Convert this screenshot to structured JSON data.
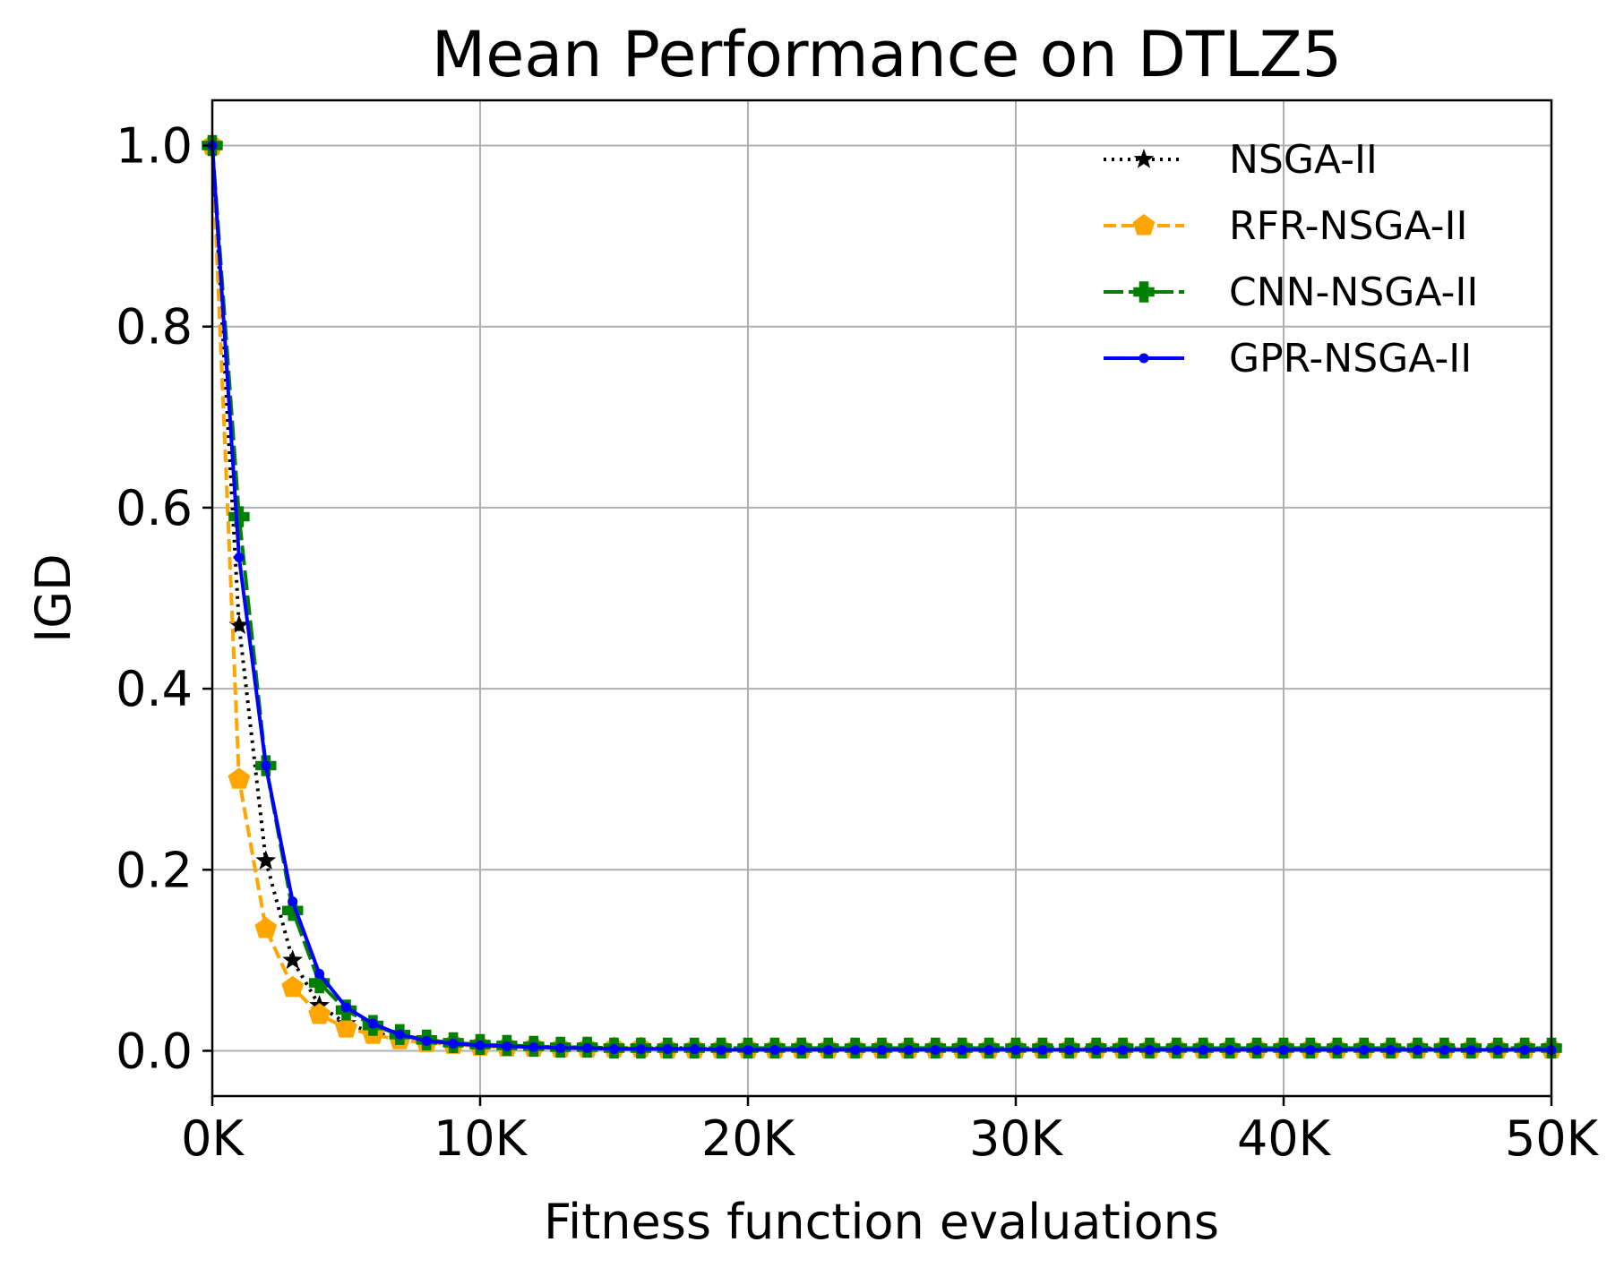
{
  "chart_data": {
    "type": "line",
    "title": "Mean Performance on DTLZ5",
    "xlabel": "Fitness function evaluations",
    "ylabel": "IGD",
    "xlim": [
      0,
      50000
    ],
    "ylim": [
      -0.05,
      1.05
    ],
    "grid": true,
    "legend_position": "top-right",
    "x_ticks": [
      0,
      10000,
      20000,
      30000,
      40000,
      50000
    ],
    "x_tick_labels": [
      "0K",
      "10K",
      "20K",
      "30K",
      "40K",
      "50K"
    ],
    "y_ticks": [
      0.0,
      0.2,
      0.4,
      0.6,
      0.8,
      1.0
    ],
    "y_tick_labels": [
      "0.0",
      "0.2",
      "0.4",
      "0.6",
      "0.8",
      "1.0"
    ],
    "x": [
      0,
      1000,
      2000,
      3000,
      4000,
      5000,
      6000,
      7000,
      8000,
      9000,
      10000,
      11000,
      12000,
      13000,
      14000,
      15000,
      16000,
      17000,
      18000,
      19000,
      20000,
      21000,
      22000,
      23000,
      24000,
      25000,
      26000,
      27000,
      28000,
      29000,
      30000,
      31000,
      32000,
      33000,
      34000,
      35000,
      36000,
      37000,
      38000,
      39000,
      40000,
      41000,
      42000,
      43000,
      44000,
      45000,
      46000,
      47000,
      48000,
      49000,
      50000
    ],
    "series": [
      {
        "name": "NSGA-II",
        "color": "#000000",
        "style": "dotted",
        "marker": "star",
        "values": [
          1.0,
          0.47,
          0.21,
          0.1,
          0.05,
          0.03,
          0.02,
          0.015,
          0.01,
          0.008,
          0.006,
          0.005,
          0.004,
          0.004,
          0.003,
          0.003,
          0.003,
          0.003,
          0.003,
          0.002,
          0.002,
          0.002,
          0.002,
          0.002,
          0.002,
          0.002,
          0.002,
          0.002,
          0.002,
          0.002,
          0.002,
          0.002,
          0.002,
          0.002,
          0.002,
          0.002,
          0.002,
          0.002,
          0.002,
          0.002,
          0.002,
          0.002,
          0.002,
          0.002,
          0.002,
          0.002,
          0.002,
          0.002,
          0.002,
          0.002,
          0.002
        ]
      },
      {
        "name": "RFR-NSGA-II",
        "color": "#ffa500",
        "style": "dashed",
        "marker": "pentagon",
        "values": [
          1.0,
          0.3,
          0.135,
          0.07,
          0.04,
          0.025,
          0.018,
          0.012,
          0.009,
          0.007,
          0.005,
          0.004,
          0.004,
          0.003,
          0.003,
          0.003,
          0.003,
          0.002,
          0.002,
          0.002,
          0.002,
          0.002,
          0.002,
          0.002,
          0.002,
          0.002,
          0.002,
          0.002,
          0.002,
          0.002,
          0.002,
          0.002,
          0.002,
          0.002,
          0.002,
          0.002,
          0.002,
          0.002,
          0.002,
          0.002,
          0.002,
          0.002,
          0.002,
          0.002,
          0.002,
          0.002,
          0.002,
          0.002,
          0.002,
          0.002,
          0.002
        ]
      },
      {
        "name": "CNN-NSGA-II",
        "color": "#008000",
        "style": "dashdot",
        "marker": "x",
        "values": [
          1.0,
          0.59,
          0.315,
          0.155,
          0.075,
          0.045,
          0.028,
          0.018,
          0.012,
          0.009,
          0.007,
          0.006,
          0.005,
          0.004,
          0.004,
          0.003,
          0.003,
          0.003,
          0.003,
          0.003,
          0.003,
          0.003,
          0.003,
          0.003,
          0.003,
          0.003,
          0.003,
          0.003,
          0.003,
          0.003,
          0.003,
          0.003,
          0.003,
          0.003,
          0.003,
          0.003,
          0.003,
          0.003,
          0.003,
          0.003,
          0.003,
          0.003,
          0.003,
          0.003,
          0.003,
          0.003,
          0.003,
          0.003,
          0.003,
          0.003,
          0.003
        ]
      },
      {
        "name": "GPR-NSGA-II",
        "color": "#0000ff",
        "style": "solid",
        "marker": "dot",
        "values": [
          1.0,
          0.545,
          0.315,
          0.165,
          0.085,
          0.048,
          0.03,
          0.018,
          0.011,
          0.008,
          0.006,
          0.005,
          0.004,
          0.003,
          0.003,
          0.002,
          0.002,
          0.002,
          0.002,
          0.001,
          0.001,
          0.001,
          0.001,
          0.001,
          0.001,
          0.001,
          0.001,
          0.001,
          0.001,
          0.001,
          0.001,
          0.001,
          0.001,
          0.001,
          0.001,
          0.001,
          0.001,
          0.001,
          0.001,
          0.001,
          0.001,
          0.001,
          0.001,
          0.001,
          0.001,
          0.001,
          0.001,
          0.001,
          0.001,
          0.001,
          0.001
        ]
      }
    ]
  }
}
